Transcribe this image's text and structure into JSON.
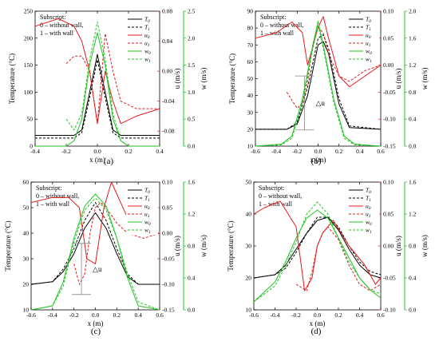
{
  "chart_data": [
    {
      "type": "line",
      "panel_label": "(a)",
      "xlabel": "x (m)",
      "ylabel_left": "Temperature (°C)",
      "ylabel_u": "u (m/s)",
      "ylabel_w": "w (m/s)",
      "annotation_lines": [
        "Subscript:",
        "0 – without wall,",
        "1 – with wall"
      ],
      "xlim": [
        -0.4,
        0.4
      ],
      "xticks": [
        "-0.4",
        "-0.2",
        "0.0",
        "0.2",
        "0.4"
      ],
      "T_lim": [
        0,
        250
      ],
      "T_ticks": [
        "0",
        "50",
        "100",
        "150",
        "200",
        "250"
      ],
      "u_lim": [
        -0.1,
        0.08
      ],
      "u_ticks": [
        "0.08",
        "0.04",
        "0.00",
        "-0.04",
        "-0.08"
      ],
      "w_lim": [
        0,
        2.5
      ],
      "w_ticks": [
        "0.0",
        "0.5",
        "1.0",
        "1.5",
        "2.0",
        "2.5"
      ],
      "delta_u": null,
      "legend": [
        "T0",
        "T1",
        "u0",
        "u1",
        "w0",
        "w1"
      ],
      "series": [
        {
          "name": "T0",
          "axis": "T",
          "x": [
            -0.4,
            -0.15,
            -0.1,
            -0.05,
            0.0,
            0.05,
            0.1,
            0.15,
            0.4
          ],
          "y": [
            20,
            20,
            30,
            100,
            170,
            100,
            30,
            20,
            20
          ]
        },
        {
          "name": "T1",
          "axis": "T",
          "x": [
            -0.4,
            -0.15,
            -0.1,
            -0.05,
            0.0,
            0.05,
            0.1,
            0.15,
            0.4
          ],
          "y": [
            15,
            15,
            25,
            90,
            160,
            90,
            25,
            15,
            15
          ]
        },
        {
          "name": "u0",
          "axis": "u",
          "x": [
            -0.4,
            -0.25,
            -0.15,
            -0.1,
            -0.05,
            0.0,
            0.05,
            0.1,
            0.15,
            0.25,
            0.4
          ],
          "y": [
            0.06,
            0.07,
            0.06,
            0.04,
            0.0,
            -0.07,
            0.0,
            -0.04,
            -0.07,
            -0.06,
            -0.05
          ]
        },
        {
          "name": "u1",
          "axis": "u",
          "x": [
            -0.2,
            -0.15,
            -0.1,
            -0.05,
            0.0,
            0.05,
            0.1,
            0.15,
            0.25,
            0.4
          ],
          "y": [
            0.01,
            0.02,
            0.02,
            0.0,
            -0.07,
            0.05,
            0.0,
            -0.04,
            -0.05,
            -0.05
          ]
        },
        {
          "name": "w0",
          "axis": "w",
          "x": [
            -0.4,
            -0.2,
            -0.15,
            -0.1,
            -0.05,
            0.0,
            0.05,
            0.1,
            0.15,
            0.2,
            0.4
          ],
          "y": [
            0,
            0,
            0.1,
            0.5,
            1.5,
            2.1,
            1.5,
            0.5,
            0.1,
            0,
            0
          ]
        },
        {
          "name": "w1",
          "axis": "w",
          "x": [
            -0.2,
            -0.15,
            -0.1,
            -0.05,
            0.0,
            0.05,
            0.1,
            0.15,
            0.2
          ],
          "y": [
            0.5,
            0.3,
            0.6,
            1.6,
            2.3,
            1.6,
            0.6,
            0.1,
            0
          ]
        }
      ]
    },
    {
      "type": "line",
      "panel_label": "(b)",
      "xlabel": "x (m)",
      "ylabel_left": "Temperature (°C)",
      "ylabel_u": "u (m/s)",
      "ylabel_w": "w (m/s)",
      "annotation_lines": [
        "Subscript:",
        "0 – without wall,",
        "1 – with wall"
      ],
      "xlim": [
        -0.6,
        0.6
      ],
      "xticks": [
        "-0.6",
        "-0.4",
        "-0.2",
        "0.0",
        "0.2",
        "0.4",
        "0.6"
      ],
      "T_lim": [
        10,
        90
      ],
      "T_ticks": [
        "10",
        "20",
        "30",
        "40",
        "50",
        "60",
        "70",
        "80",
        "90"
      ],
      "u_lim": [
        -0.15,
        0.1
      ],
      "u_ticks": [
        "0.10",
        "0.05",
        "0.00",
        "-0.05",
        "-0.10",
        "-0.15"
      ],
      "w_lim": [
        0,
        2.0
      ],
      "w_ticks": [
        "0.0",
        "0.4",
        "0.8",
        "1.2",
        "1.6",
        "2.0"
      ],
      "delta_u": "△u",
      "legend": [
        "T0",
        "T1",
        "u0",
        "u1",
        "w0",
        "w1"
      ],
      "series": [
        {
          "name": "T0",
          "axis": "T",
          "x": [
            -0.6,
            -0.3,
            -0.2,
            -0.1,
            0.0,
            0.05,
            0.1,
            0.2,
            0.3,
            0.6
          ],
          "y": [
            20,
            20,
            23,
            40,
            70,
            72,
            65,
            35,
            21,
            20
          ]
        },
        {
          "name": "T1",
          "axis": "T",
          "x": [
            -0.6,
            -0.3,
            -0.2,
            -0.1,
            0.0,
            0.05,
            0.1,
            0.2,
            0.3,
            0.6
          ],
          "y": [
            20,
            20,
            24,
            45,
            74,
            76,
            68,
            38,
            22,
            20
          ]
        },
        {
          "name": "u0",
          "axis": "u",
          "x": [
            -0.6,
            -0.4,
            -0.25,
            -0.15,
            -0.1,
            0.0,
            0.05,
            0.1,
            0.2,
            0.3,
            0.45,
            0.6
          ],
          "y": [
            0.05,
            0.06,
            0.08,
            0.06,
            0.0,
            0.07,
            0.09,
            0.05,
            -0.02,
            -0.04,
            -0.02,
            0.0
          ]
        },
        {
          "name": "u1",
          "axis": "u",
          "x": [
            -0.3,
            -0.2,
            -0.15,
            -0.1,
            -0.05,
            0.0,
            0.05,
            0.1,
            0.2,
            0.3,
            0.45,
            0.6
          ],
          "y": [
            -0.05,
            -0.08,
            -0.07,
            -0.03,
            0.04,
            0.07,
            0.06,
            0.02,
            -0.02,
            -0.03,
            -0.01,
            0.0
          ]
        },
        {
          "name": "w0",
          "axis": "w",
          "x": [
            -0.6,
            -0.35,
            -0.25,
            -0.15,
            -0.05,
            0.0,
            0.05,
            0.15,
            0.25,
            0.35,
            0.6
          ],
          "y": [
            0,
            0.03,
            0.15,
            0.7,
            1.5,
            1.85,
            1.5,
            0.7,
            0.15,
            0.03,
            0
          ]
        },
        {
          "name": "w1",
          "axis": "w",
          "x": [
            -0.6,
            -0.35,
            -0.25,
            -0.15,
            -0.05,
            0.0,
            0.05,
            0.15,
            0.25,
            0.35,
            0.6
          ],
          "y": [
            0,
            0.02,
            0.12,
            0.65,
            1.45,
            1.8,
            1.45,
            0.65,
            0.12,
            0.02,
            0
          ]
        }
      ]
    },
    {
      "type": "line",
      "panel_label": "(c)",
      "xlabel": "x (m)",
      "ylabel_left": "Temperature (°C)",
      "ylabel_u": "u (m/s)",
      "ylabel_w": "w (m/s)",
      "annotation_lines": [
        "Subscript:",
        "0 – without wall,",
        "1 – with wall"
      ],
      "xlim": [
        -0.6,
        0.6
      ],
      "xticks": [
        "-0.6",
        "-0.4",
        "-0.2",
        "0.0",
        "0.2",
        "0.4",
        "0.6"
      ],
      "T_lim": [
        10,
        60
      ],
      "T_ticks": [
        "10",
        "20",
        "30",
        "40",
        "50",
        "60"
      ],
      "u_lim": [
        -0.15,
        0.1
      ],
      "u_ticks": [
        "0.10",
        "0.05",
        "0.00",
        "-0.05",
        "-0.10",
        "-0.15"
      ],
      "w_lim": [
        0,
        1.6
      ],
      "w_ticks": [
        "0.0",
        "0.4",
        "0.8",
        "1.2",
        "1.6"
      ],
      "delta_u": "△u",
      "legend": [
        "T0",
        "T1",
        "u0",
        "u1",
        "w0",
        "w1"
      ],
      "series": [
        {
          "name": "T0",
          "axis": "T",
          "x": [
            -0.6,
            -0.4,
            -0.3,
            -0.2,
            -0.1,
            0.0,
            0.1,
            0.2,
            0.3,
            0.4,
            0.6
          ],
          "y": [
            20,
            21,
            25,
            32,
            42,
            48,
            42,
            32,
            23,
            20,
            20
          ]
        },
        {
          "name": "T1",
          "axis": "T",
          "x": [
            -0.6,
            -0.4,
            -0.3,
            -0.2,
            -0.1,
            0.0,
            0.1,
            0.2,
            0.3,
            0.4,
            0.6
          ],
          "y": [
            20,
            21,
            26,
            34,
            45,
            52,
            45,
            34,
            24,
            20,
            20
          ]
        },
        {
          "name": "u0",
          "axis": "u",
          "x": [
            -0.6,
            -0.4,
            -0.25,
            -0.15,
            -0.08,
            0.0,
            0.08,
            0.15,
            0.3,
            0.45,
            0.6
          ],
          "y": [
            0.06,
            0.07,
            0.07,
            0.05,
            -0.05,
            -0.06,
            0.05,
            0.1,
            0.03,
            0.0,
            0.0
          ]
        },
        {
          "name": "u1",
          "axis": "u",
          "x": [
            -0.2,
            -0.15,
            -0.1,
            -0.05,
            0.0,
            0.05,
            0.1,
            0.2,
            0.3,
            0.45,
            0.6
          ],
          "y": [
            -0.06,
            -0.1,
            -0.08,
            0.0,
            0.05,
            0.06,
            0.05,
            0.02,
            0.0,
            -0.01,
            0.0
          ]
        },
        {
          "name": "w0",
          "axis": "w",
          "x": [
            -0.6,
            -0.4,
            -0.3,
            -0.2,
            -0.1,
            0.0,
            0.1,
            0.2,
            0.3,
            0.4,
            0.6
          ],
          "y": [
            0,
            0.05,
            0.35,
            0.9,
            1.3,
            1.45,
            1.3,
            0.9,
            0.4,
            0.05,
            0
          ]
        },
        {
          "name": "w1",
          "axis": "w",
          "x": [
            -0.6,
            -0.4,
            -0.3,
            -0.2,
            -0.1,
            0.0,
            0.1,
            0.2,
            0.3,
            0.4,
            0.6
          ],
          "y": [
            0,
            0.05,
            0.3,
            0.85,
            1.25,
            1.4,
            1.25,
            0.9,
            0.45,
            0.1,
            0
          ]
        }
      ]
    },
    {
      "type": "line",
      "panel_label": "(d)",
      "xlabel": "x (m)",
      "ylabel_left": "Temperature (°C)",
      "ylabel_u": "u (m/s)",
      "ylabel_w": "w (m/s)",
      "annotation_lines": [
        "Subscript:",
        "0 – without wall,",
        "1 – with wall"
      ],
      "xlim": [
        -0.6,
        0.6
      ],
      "xticks": [
        "-0.6",
        "-0.4",
        "-0.2",
        "0.0",
        "0.2",
        "0.4",
        "0.6"
      ],
      "T_lim": [
        10,
        50
      ],
      "T_ticks": [
        "10",
        "20",
        "30",
        "40",
        "50"
      ],
      "u_lim": [
        -0.1,
        0.1
      ],
      "u_ticks": [
        "0.10",
        "0.05",
        "0.00",
        "-0.05",
        "-0.10"
      ],
      "w_lim": [
        0,
        1.6
      ],
      "w_ticks": [
        "0.0",
        "0.4",
        "0.8",
        "1.2",
        "1.6"
      ],
      "delta_u": null,
      "legend": [
        "T0",
        "T1",
        "u0",
        "u1",
        "w0",
        "w1"
      ],
      "series": [
        {
          "name": "T0",
          "axis": "T",
          "x": [
            -0.6,
            -0.4,
            -0.3,
            -0.2,
            -0.1,
            0.0,
            0.1,
            0.2,
            0.3,
            0.4,
            0.5,
            0.6
          ],
          "y": [
            20,
            21,
            24,
            29,
            34,
            38,
            39,
            35,
            29,
            24,
            21,
            20
          ]
        },
        {
          "name": "T1",
          "axis": "T",
          "x": [
            -0.6,
            -0.4,
            -0.3,
            -0.2,
            -0.1,
            0.0,
            0.1,
            0.2,
            0.3,
            0.4,
            0.5,
            0.6
          ],
          "y": [
            20,
            21,
            23,
            28,
            34,
            39,
            39,
            36,
            30,
            25,
            22,
            21
          ]
        },
        {
          "name": "u0",
          "axis": "u",
          "x": [
            -0.6,
            -0.5,
            -0.35,
            -0.2,
            -0.12,
            -0.05,
            0.0,
            0.05,
            0.15,
            0.3,
            0.45,
            0.55,
            0.6
          ],
          "y": [
            0.05,
            0.06,
            0.07,
            0.03,
            -0.07,
            -0.05,
            0.0,
            0.02,
            0.04,
            0.0,
            -0.03,
            -0.06,
            -0.05
          ]
        },
        {
          "name": "u1",
          "axis": "u",
          "x": [
            -0.2,
            -0.1,
            -0.05,
            0.0,
            0.05,
            0.1,
            0.2,
            0.3,
            0.4,
            0.5,
            0.6
          ],
          "y": [
            -0.06,
            -0.07,
            -0.04,
            0.0,
            0.02,
            0.03,
            0.01,
            -0.03,
            -0.06,
            -0.07,
            -0.06
          ]
        },
        {
          "name": "w0",
          "axis": "w",
          "x": [
            -0.6,
            -0.4,
            -0.3,
            -0.2,
            -0.1,
            0.0,
            0.1,
            0.2,
            0.3,
            0.4,
            0.5,
            0.6
          ],
          "y": [
            0.1,
            0.35,
            0.6,
            0.9,
            1.15,
            1.25,
            1.15,
            0.9,
            0.65,
            0.4,
            0.25,
            0.15
          ]
        },
        {
          "name": "w1",
          "axis": "w",
          "x": [
            -0.6,
            -0.4,
            -0.3,
            -0.2,
            -0.1,
            0.0,
            0.1,
            0.2,
            0.3,
            0.4,
            0.5,
            0.6
          ],
          "y": [
            0.1,
            0.3,
            0.55,
            0.85,
            1.2,
            1.35,
            1.2,
            0.9,
            0.6,
            0.4,
            0.25,
            0.2
          ]
        }
      ]
    }
  ],
  "styles": {
    "T0": {
      "color": "#000000",
      "dash": ""
    },
    "T1": {
      "color": "#000000",
      "dash": "3,2"
    },
    "u0": {
      "color": "#e41a1c",
      "dash": ""
    },
    "u1": {
      "color": "#e41a1c",
      "dash": "3,2"
    },
    "w0": {
      "color": "#22c422",
      "dash": ""
    },
    "w1": {
      "color": "#22c422",
      "dash": "3,2"
    }
  }
}
